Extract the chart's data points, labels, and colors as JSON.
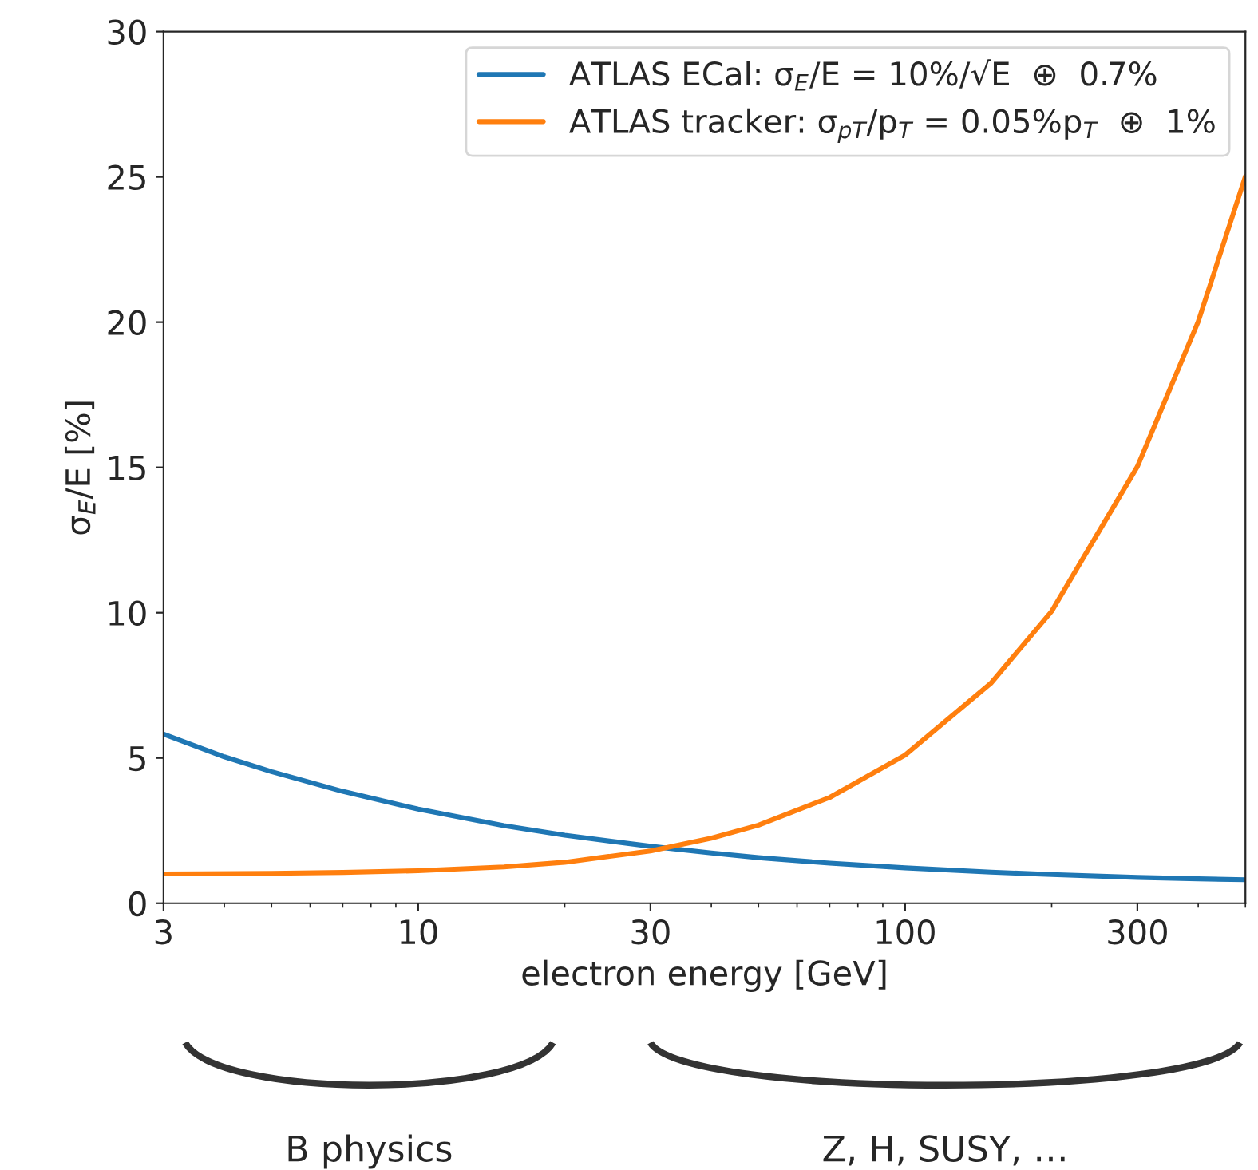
{
  "chart_data": {
    "type": "line",
    "xlabel": "electron energy [GeV]",
    "ylabel": "σ$_{E}$/E [%]",
    "log": "x",
    "xlim": [
      3,
      500
    ],
    "xticks": [
      3,
      10,
      30,
      100,
      300
    ],
    "ylim": [
      0,
      30
    ],
    "yticks": [
      0,
      5,
      10,
      15,
      20,
      25,
      30
    ],
    "grid": false,
    "legend": "top right",
    "marker": "none",
    "line_style": "solid",
    "series": [
      {
        "name": "ATLAS ECal: σ$_{E}$/E = 10%/√E  ⊕  0.7%",
        "color": "#1f77b4",
        "x": [
          3,
          4,
          5,
          7,
          10,
          15,
          20,
          30,
          40,
          50,
          70,
          100,
          150,
          200,
          300,
          400,
          500
        ],
        "values": [
          5.82,
          5.04,
          4.53,
          3.85,
          3.24,
          2.67,
          2.34,
          1.96,
          1.73,
          1.57,
          1.38,
          1.22,
          1.07,
          0.99,
          0.89,
          0.84,
          0.81
        ]
      },
      {
        "name": "ATLAS tracker: σ$_{pT}$/p$_{T}$ = 0.05%p$_{T}$  ⊕  1%",
        "color": "#ff7f0e",
        "x": [
          3,
          5,
          7,
          10,
          15,
          20,
          30,
          40,
          50,
          70,
          100,
          150,
          200,
          300,
          400,
          500
        ],
        "values": [
          1.01,
          1.03,
          1.06,
          1.12,
          1.25,
          1.41,
          1.8,
          2.24,
          2.69,
          3.64,
          5.1,
          7.57,
          10.05,
          15.03,
          20.02,
          25.02
        ]
      }
    ],
    "annotations": [
      "B physics",
      "Z, H, SUSY, …"
    ]
  }
}
